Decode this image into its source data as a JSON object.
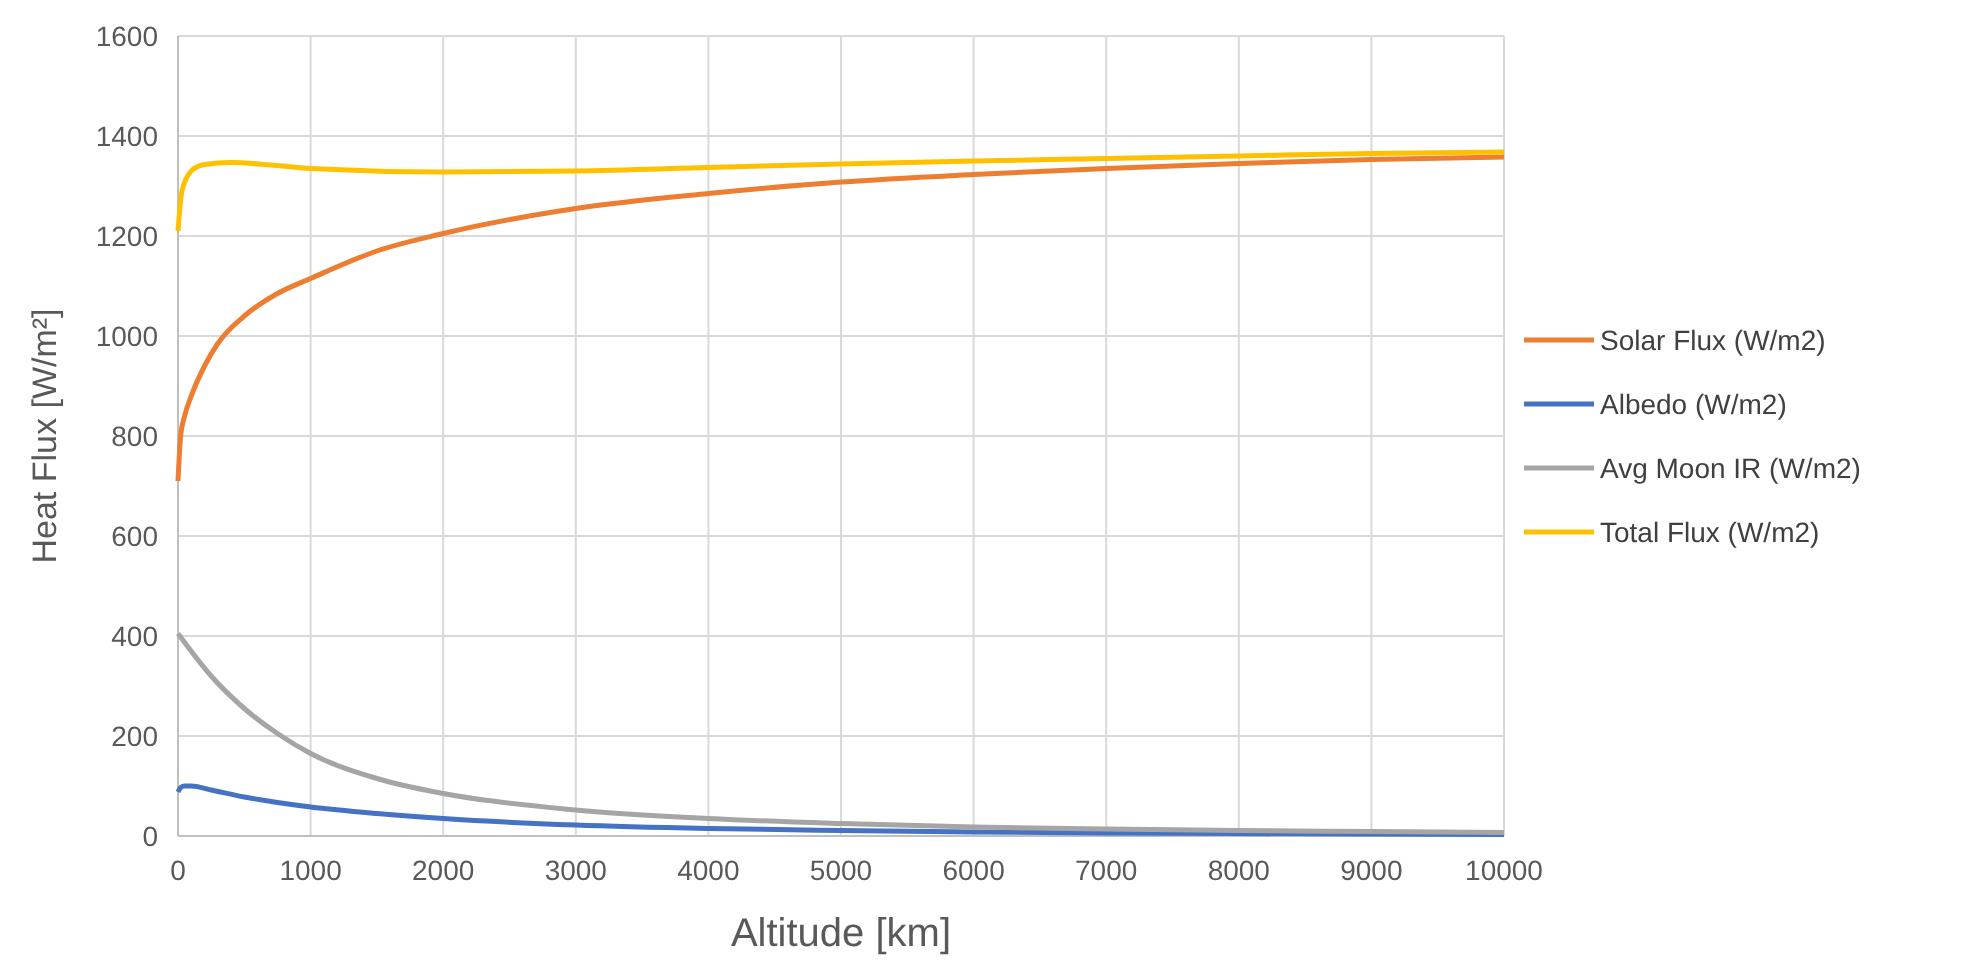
{
  "chart_data": {
    "type": "line",
    "xlabel": "Altitude [km]",
    "ylabel": "Heat Flux [W/m²]",
    "xlim": [
      0,
      10000
    ],
    "xticks": [
      0,
      1000,
      2000,
      3000,
      4000,
      5000,
      6000,
      7000,
      8000,
      9000,
      10000
    ],
    "ylim": [
      0,
      1600
    ],
    "yticks": [
      0,
      200,
      400,
      600,
      800,
      1000,
      1200,
      1400,
      1600
    ],
    "grid": true,
    "legend": "right",
    "marker": "none",
    "line_style": "solid",
    "series": [
      {
        "name": "Solar Flux (W/m2)",
        "color": "#ed7d31",
        "x": [
          0,
          20,
          50,
          100,
          200,
          300,
          500,
          750,
          1000,
          1500,
          2000,
          3000,
          4000,
          5000,
          6000,
          7000,
          8000,
          9000,
          10000
        ],
        "values": [
          710,
          800,
          840,
          880,
          940,
          985,
          1040,
          1085,
          1115,
          1170,
          1205,
          1255,
          1285,
          1308,
          1323,
          1335,
          1345,
          1353,
          1358
        ]
      },
      {
        "name": "Albedo (W/m2)",
        "color": "#4472c4",
        "x": [
          0,
          20,
          50,
          100,
          250,
          500,
          750,
          1000,
          1500,
          2000,
          3000,
          4000,
          5000,
          6000,
          7000,
          8000,
          9000,
          10000
        ],
        "values": [
          88,
          97,
          100,
          100,
          92,
          78,
          67,
          58,
          45,
          35,
          22,
          15,
          11,
          8,
          6,
          5,
          4,
          3
        ]
      },
      {
        "name": "Avg Moon IR (W/m2)",
        "color": "#a5a5a5",
        "x": [
          0,
          250,
          500,
          750,
          1000,
          1500,
          2000,
          3000,
          4000,
          5000,
          6000,
          7000,
          8000,
          9000,
          10000
        ],
        "values": [
          405,
          320,
          255,
          205,
          165,
          115,
          85,
          52,
          35,
          25,
          18,
          14,
          11,
          9,
          7
        ]
      },
      {
        "name": "Total Flux (W/m2)",
        "color": "#ffc000",
        "x": [
          0,
          30,
          100,
          200,
          400,
          700,
          1000,
          2000,
          3000,
          4000,
          5000,
          6000,
          7000,
          8000,
          9000,
          10000
        ],
        "values": [
          1210,
          1290,
          1330,
          1343,
          1347,
          1342,
          1335,
          1328,
          1330,
          1337,
          1344,
          1350,
          1355,
          1360,
          1365,
          1368
        ]
      }
    ]
  }
}
